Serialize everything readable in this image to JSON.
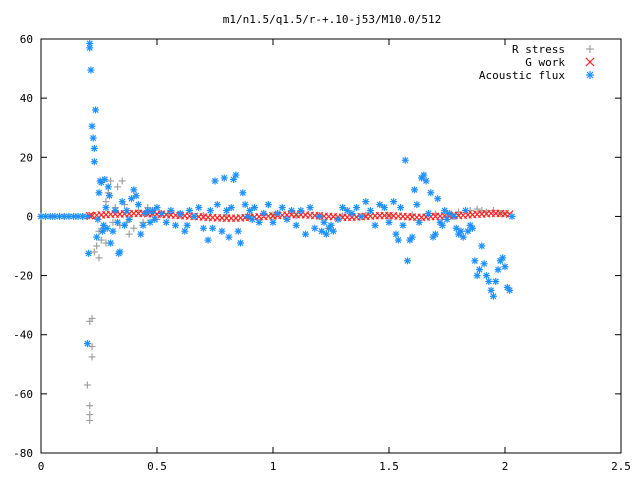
{
  "chart_data": {
    "type": "scatter",
    "title": "m1/n1.5/q1.5/r-+.10-j53/M10.0/512",
    "xlabel": "",
    "ylabel": "",
    "xlim": [
      0,
      2.5
    ],
    "ylim": [
      -80,
      60
    ],
    "x_ticks": [
      "0",
      "0.5",
      "1",
      "1.5",
      "2",
      "2.5"
    ],
    "y_ticks": [
      "60",
      "40",
      "20",
      "0",
      "-20",
      "-40",
      "-60",
      "-80"
    ],
    "legend_position": "top-right",
    "grid": false,
    "series": [
      {
        "name": "R stress",
        "marker": "plus",
        "color": "#a0a0a0",
        "points": [
          [
            0.0,
            0
          ],
          [
            0.05,
            0
          ],
          [
            0.1,
            0
          ],
          [
            0.15,
            0
          ],
          [
            0.18,
            0
          ],
          [
            0.2,
            -57
          ],
          [
            0.21,
            -64
          ],
          [
            0.21,
            -67
          ],
          [
            0.21,
            -69
          ],
          [
            0.21,
            -35.5
          ],
          [
            0.22,
            -34.5
          ],
          [
            0.22,
            -44
          ],
          [
            0.22,
            -47.5
          ],
          [
            0.23,
            -12
          ],
          [
            0.24,
            -10
          ],
          [
            0.25,
            -5
          ],
          [
            0.25,
            -14
          ],
          [
            0.26,
            -8
          ],
          [
            0.27,
            -4
          ],
          [
            0.28,
            5
          ],
          [
            0.28,
            -9
          ],
          [
            0.29,
            8
          ],
          [
            0.3,
            12
          ],
          [
            0.31,
            -2
          ],
          [
            0.32,
            3
          ],
          [
            0.33,
            10
          ],
          [
            0.34,
            -3
          ],
          [
            0.35,
            12
          ],
          [
            0.36,
            4
          ],
          [
            0.37,
            -2
          ],
          [
            0.38,
            -6
          ],
          [
            0.4,
            -4
          ],
          [
            0.42,
            2
          ],
          [
            0.44,
            -2
          ],
          [
            0.46,
            3
          ],
          [
            0.48,
            1
          ],
          [
            0.5,
            -1
          ],
          [
            0.55,
            1
          ],
          [
            0.6,
            0.5
          ],
          [
            0.7,
            0.3
          ],
          [
            0.8,
            0.5
          ],
          [
            0.9,
            0.3
          ],
          [
            1.0,
            0.5
          ],
          [
            1.1,
            0.2
          ],
          [
            1.2,
            0.3
          ],
          [
            1.3,
            0.2
          ],
          [
            1.4,
            0.4
          ],
          [
            1.5,
            0.3
          ],
          [
            1.6,
            0.6
          ],
          [
            1.7,
            0.8
          ],
          [
            1.8,
            1.5
          ],
          [
            1.85,
            2
          ],
          [
            1.88,
            2.5
          ],
          [
            1.9,
            2
          ],
          [
            1.92,
            1.5
          ],
          [
            1.95,
            2
          ],
          [
            1.98,
            1
          ],
          [
            2.0,
            1
          ]
        ]
      },
      {
        "name": "G work",
        "marker": "cross",
        "color": "#ff2020",
        "points": [
          [
            0.21,
            0.2
          ],
          [
            0.22,
            0.3
          ],
          [
            0.24,
            0.4
          ],
          [
            0.26,
            0.5
          ],
          [
            0.28,
            0.6
          ],
          [
            0.3,
            0.7
          ],
          [
            0.32,
            0.8
          ],
          [
            0.34,
            0.8
          ],
          [
            0.36,
            0.9
          ],
          [
            0.38,
            0.9
          ],
          [
            0.4,
            1.0
          ],
          [
            0.42,
            1.0
          ],
          [
            0.44,
            1.0
          ],
          [
            0.46,
            0.9
          ],
          [
            0.48,
            0.9
          ],
          [
            0.5,
            0.8
          ],
          [
            0.52,
            0.7
          ],
          [
            0.54,
            0.6
          ],
          [
            0.56,
            0.5
          ],
          [
            0.58,
            0.4
          ],
          [
            0.6,
            0.3
          ],
          [
            0.62,
            0.2
          ],
          [
            0.64,
            0.1
          ],
          [
            0.66,
            0.0
          ],
          [
            0.68,
            -0.1
          ],
          [
            0.7,
            -0.2
          ],
          [
            0.72,
            -0.3
          ],
          [
            0.74,
            -0.4
          ],
          [
            0.76,
            -0.5
          ],
          [
            0.78,
            -0.5
          ],
          [
            0.8,
            -0.6
          ],
          [
            0.82,
            -0.6
          ],
          [
            0.84,
            -0.6
          ],
          [
            0.86,
            -0.5
          ],
          [
            0.88,
            -0.4
          ],
          [
            0.9,
            -0.3
          ],
          [
            0.92,
            -0.2
          ],
          [
            0.94,
            -0.1
          ],
          [
            0.96,
            0.0
          ],
          [
            0.98,
            0.1
          ],
          [
            1.0,
            0.2
          ],
          [
            1.02,
            0.3
          ],
          [
            1.04,
            0.4
          ],
          [
            1.06,
            0.5
          ],
          [
            1.08,
            0.6
          ],
          [
            1.1,
            0.6
          ],
          [
            1.12,
            0.6
          ],
          [
            1.14,
            0.5
          ],
          [
            1.16,
            0.4
          ],
          [
            1.18,
            0.3
          ],
          [
            1.2,
            0.2
          ],
          [
            1.22,
            0.1
          ],
          [
            1.24,
            0.0
          ],
          [
            1.26,
            -0.1
          ],
          [
            1.28,
            -0.2
          ],
          [
            1.3,
            -0.3
          ],
          [
            1.32,
            -0.3
          ],
          [
            1.34,
            -0.3
          ],
          [
            1.36,
            -0.2
          ],
          [
            1.38,
            -0.1
          ],
          [
            1.4,
            0.0
          ],
          [
            1.42,
            0.1
          ],
          [
            1.44,
            0.2
          ],
          [
            1.46,
            0.3
          ],
          [
            1.48,
            0.3
          ],
          [
            1.5,
            0.3
          ],
          [
            1.52,
            0.2
          ],
          [
            1.54,
            0.1
          ],
          [
            1.56,
            0.0
          ],
          [
            1.58,
            -0.1
          ],
          [
            1.6,
            -0.2
          ],
          [
            1.62,
            -0.3
          ],
          [
            1.64,
            -0.3
          ],
          [
            1.66,
            -0.2
          ],
          [
            1.68,
            -0.1
          ],
          [
            1.7,
            0.0
          ],
          [
            1.72,
            0.1
          ],
          [
            1.74,
            0.2
          ],
          [
            1.76,
            0.2
          ],
          [
            1.78,
            0.3
          ],
          [
            1.8,
            0.3
          ],
          [
            1.82,
            0.4
          ],
          [
            1.84,
            0.5
          ],
          [
            1.86,
            0.6
          ],
          [
            1.88,
            0.7
          ],
          [
            1.9,
            0.8
          ],
          [
            1.92,
            0.9
          ],
          [
            1.94,
            1.0
          ],
          [
            1.96,
            1.0
          ],
          [
            1.98,
            1.0
          ],
          [
            2.0,
            0.9
          ],
          [
            2.02,
            0.8
          ]
        ]
      },
      {
        "name": "Acoustic flux",
        "marker": "star",
        "color": "#1e90ff",
        "points": [
          [
            0.0,
            0
          ],
          [
            0.02,
            0
          ],
          [
            0.04,
            0
          ],
          [
            0.06,
            0
          ],
          [
            0.08,
            0
          ],
          [
            0.1,
            0
          ],
          [
            0.12,
            0
          ],
          [
            0.14,
            0
          ],
          [
            0.16,
            0
          ],
          [
            0.18,
            0
          ],
          [
            0.2,
            0
          ],
          [
            0.2,
            -43
          ],
          [
            0.205,
            -12.5
          ],
          [
            0.21,
            58.5
          ],
          [
            0.21,
            57
          ],
          [
            0.215,
            49.5
          ],
          [
            0.22,
            30.5
          ],
          [
            0.225,
            26.5
          ],
          [
            0.23,
            23
          ],
          [
            0.23,
            18.5
          ],
          [
            0.235,
            36
          ],
          [
            0.24,
            -7
          ],
          [
            0.245,
            -1
          ],
          [
            0.25,
            8
          ],
          [
            0.255,
            12
          ],
          [
            0.26,
            11.5
          ],
          [
            0.265,
            -5
          ],
          [
            0.27,
            -3
          ],
          [
            0.275,
            12.5
          ],
          [
            0.28,
            3
          ],
          [
            0.285,
            -4
          ],
          [
            0.29,
            10
          ],
          [
            0.295,
            7
          ],
          [
            0.3,
            -9
          ],
          [
            0.31,
            -5
          ],
          [
            0.32,
            2
          ],
          [
            0.33,
            -2
          ],
          [
            0.335,
            -12.5
          ],
          [
            0.34,
            -12
          ],
          [
            0.35,
            5
          ],
          [
            0.36,
            -3
          ],
          [
            0.37,
            2
          ],
          [
            0.38,
            -1
          ],
          [
            0.39,
            6
          ],
          [
            0.4,
            9
          ],
          [
            0.41,
            7
          ],
          [
            0.42,
            4
          ],
          [
            0.43,
            -6
          ],
          [
            0.44,
            -3
          ],
          [
            0.45,
            1
          ],
          [
            0.46,
            2
          ],
          [
            0.47,
            -2
          ],
          [
            0.48,
            2
          ],
          [
            0.49,
            -1
          ],
          [
            0.5,
            3
          ],
          [
            0.52,
            1
          ],
          [
            0.54,
            -2
          ],
          [
            0.56,
            2
          ],
          [
            0.58,
            -3
          ],
          [
            0.6,
            1
          ],
          [
            0.62,
            -5
          ],
          [
            0.63,
            -3
          ],
          [
            0.64,
            2
          ],
          [
            0.66,
            0
          ],
          [
            0.68,
            3
          ],
          [
            0.7,
            -4
          ],
          [
            0.72,
            -8
          ],
          [
            0.73,
            2
          ],
          [
            0.74,
            -4
          ],
          [
            0.75,
            12
          ],
          [
            0.76,
            4
          ],
          [
            0.78,
            -5
          ],
          [
            0.79,
            13
          ],
          [
            0.8,
            2
          ],
          [
            0.81,
            -7
          ],
          [
            0.82,
            3
          ],
          [
            0.83,
            12.5
          ],
          [
            0.84,
            14
          ],
          [
            0.85,
            -5
          ],
          [
            0.86,
            -9
          ],
          [
            0.87,
            8
          ],
          [
            0.88,
            4
          ],
          [
            0.89,
            0
          ],
          [
            0.9,
            2
          ],
          [
            0.91,
            -1
          ],
          [
            0.92,
            3
          ],
          [
            0.94,
            -2
          ],
          [
            0.96,
            1
          ],
          [
            0.98,
            4
          ],
          [
            1.0,
            -2
          ],
          [
            1.02,
            1
          ],
          [
            1.04,
            3
          ],
          [
            1.06,
            -1
          ],
          [
            1.08,
            2
          ],
          [
            1.1,
            -3
          ],
          [
            1.12,
            2
          ],
          [
            1.14,
            -6
          ],
          [
            1.16,
            3
          ],
          [
            1.18,
            -4
          ],
          [
            1.2,
            0
          ],
          [
            1.21,
            -5
          ],
          [
            1.22,
            -2
          ],
          [
            1.23,
            -6
          ],
          [
            1.24,
            -4
          ],
          [
            1.25,
            -3
          ],
          [
            1.26,
            -5
          ],
          [
            1.28,
            -1
          ],
          [
            1.3,
            3
          ],
          [
            1.32,
            2
          ],
          [
            1.34,
            1
          ],
          [
            1.36,
            3
          ],
          [
            1.38,
            0
          ],
          [
            1.4,
            5
          ],
          [
            1.42,
            2
          ],
          [
            1.44,
            -3
          ],
          [
            1.46,
            4
          ],
          [
            1.48,
            3
          ],
          [
            1.5,
            -2
          ],
          [
            1.52,
            5
          ],
          [
            1.53,
            -6
          ],
          [
            1.54,
            -8
          ],
          [
            1.55,
            3
          ],
          [
            1.56,
            -3
          ],
          [
            1.57,
            19
          ],
          [
            1.58,
            -15
          ],
          [
            1.59,
            -8
          ],
          [
            1.6,
            -7
          ],
          [
            1.61,
            9
          ],
          [
            1.62,
            4
          ],
          [
            1.63,
            -2
          ],
          [
            1.64,
            13
          ],
          [
            1.65,
            14
          ],
          [
            1.66,
            12
          ],
          [
            1.67,
            1
          ],
          [
            1.68,
            8
          ],
          [
            1.69,
            -7
          ],
          [
            1.7,
            -6
          ],
          [
            1.71,
            6
          ],
          [
            1.72,
            -2
          ],
          [
            1.73,
            -3
          ],
          [
            1.74,
            2
          ],
          [
            1.75,
            -1
          ],
          [
            1.76,
            1
          ],
          [
            1.78,
            0
          ],
          [
            1.79,
            -4
          ],
          [
            1.8,
            -6
          ],
          [
            1.81,
            -5
          ],
          [
            1.82,
            -7
          ],
          [
            1.83,
            2
          ],
          [
            1.84,
            -5
          ],
          [
            1.85,
            -3
          ],
          [
            1.86,
            -4
          ],
          [
            1.87,
            -15
          ],
          [
            1.88,
            -20
          ],
          [
            1.89,
            -18
          ],
          [
            1.9,
            -10
          ],
          [
            1.91,
            -16
          ],
          [
            1.92,
            -20
          ],
          [
            1.93,
            -22
          ],
          [
            1.94,
            -25
          ],
          [
            1.95,
            -27
          ],
          [
            1.96,
            -22
          ],
          [
            1.97,
            -18
          ],
          [
            1.98,
            -15
          ],
          [
            1.99,
            -14
          ],
          [
            2.0,
            -17
          ],
          [
            2.01,
            -24
          ],
          [
            2.02,
            -25
          ],
          [
            2.03,
            0
          ]
        ]
      }
    ]
  }
}
